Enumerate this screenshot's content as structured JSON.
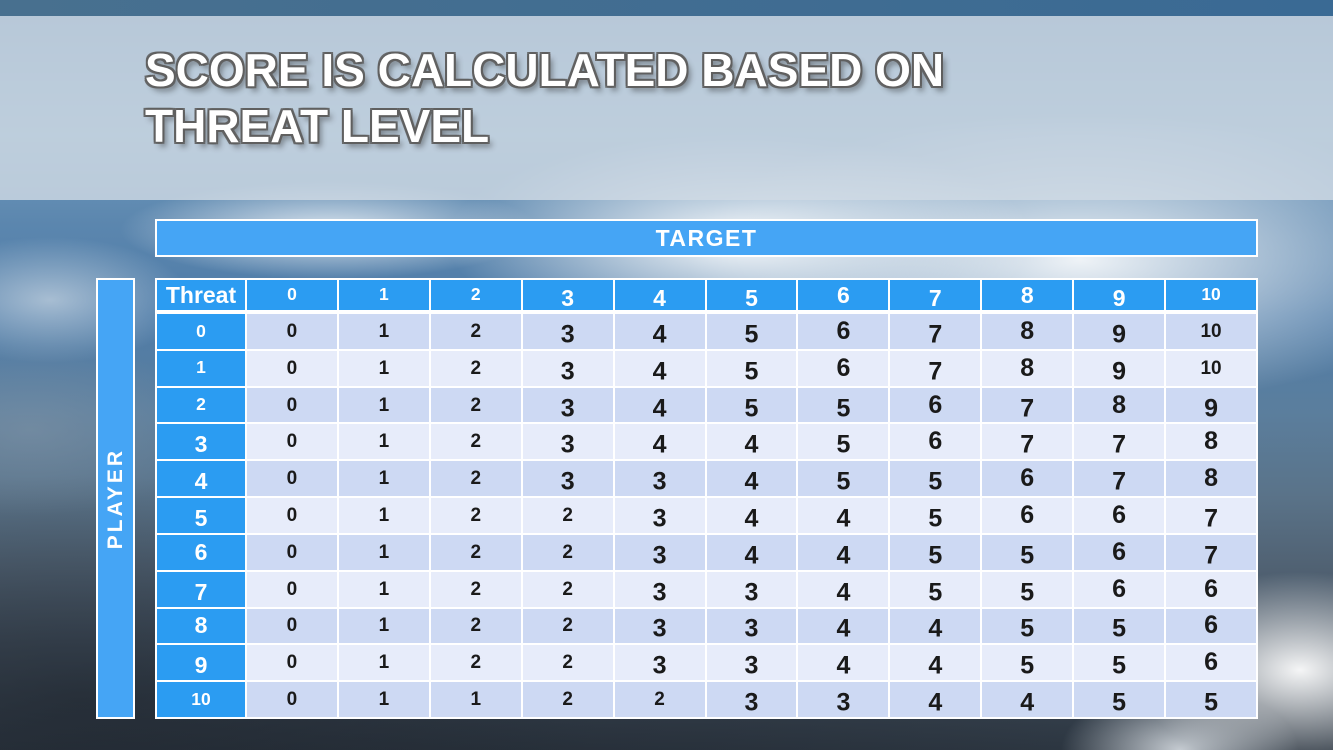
{
  "slide": {
    "title": "SCORE IS CALCULATED BASED ON THREAT LEVEL"
  },
  "table": {
    "target_label": "TARGET",
    "player_label": "PLAYER",
    "corner_label": "Threat",
    "column_headers": [
      "0",
      "1",
      "2",
      "3",
      "4",
      "5",
      "6",
      "7",
      "8",
      "9",
      "10"
    ],
    "rows": [
      {
        "label": "0",
        "values": [
          "0",
          "1",
          "2",
          "3",
          "4",
          "5",
          "6",
          "7",
          "8",
          "9",
          "10"
        ]
      },
      {
        "label": "1",
        "values": [
          "0",
          "1",
          "2",
          "3",
          "4",
          "5",
          "6",
          "7",
          "8",
          "9",
          "10"
        ]
      },
      {
        "label": "2",
        "values": [
          "0",
          "1",
          "2",
          "3",
          "4",
          "5",
          "5",
          "6",
          "7",
          "8",
          "9"
        ]
      },
      {
        "label": "3",
        "values": [
          "0",
          "1",
          "2",
          "3",
          "4",
          "4",
          "5",
          "6",
          "7",
          "7",
          "8"
        ]
      },
      {
        "label": "4",
        "values": [
          "0",
          "1",
          "2",
          "3",
          "3",
          "4",
          "5",
          "5",
          "6",
          "7",
          "8"
        ]
      },
      {
        "label": "5",
        "values": [
          "0",
          "1",
          "2",
          "2",
          "3",
          "4",
          "4",
          "5",
          "6",
          "6",
          "7"
        ]
      },
      {
        "label": "6",
        "values": [
          "0",
          "1",
          "2",
          "2",
          "3",
          "4",
          "4",
          "5",
          "5",
          "6",
          "7"
        ]
      },
      {
        "label": "7",
        "values": [
          "0",
          "1",
          "2",
          "2",
          "3",
          "3",
          "4",
          "5",
          "5",
          "6",
          "6"
        ]
      },
      {
        "label": "8",
        "values": [
          "0",
          "1",
          "2",
          "2",
          "3",
          "3",
          "4",
          "4",
          "5",
          "5",
          "6"
        ]
      },
      {
        "label": "9",
        "values": [
          "0",
          "1",
          "2",
          "2",
          "3",
          "3",
          "4",
          "4",
          "5",
          "5",
          "6"
        ]
      },
      {
        "label": "10",
        "values": [
          "0",
          "1",
          "1",
          "2",
          "2",
          "3",
          "3",
          "4",
          "4",
          "5",
          "5"
        ]
      }
    ]
  },
  "colors": {
    "header_blue": "#2b9cf2",
    "bar_blue": "#45a5f5",
    "row_even": "#cdd9f3",
    "row_odd": "#e7ecfa",
    "top_bar": "#3f6b91",
    "title_band": "#d1dbe5",
    "cell_text": "#1a1a1a"
  }
}
